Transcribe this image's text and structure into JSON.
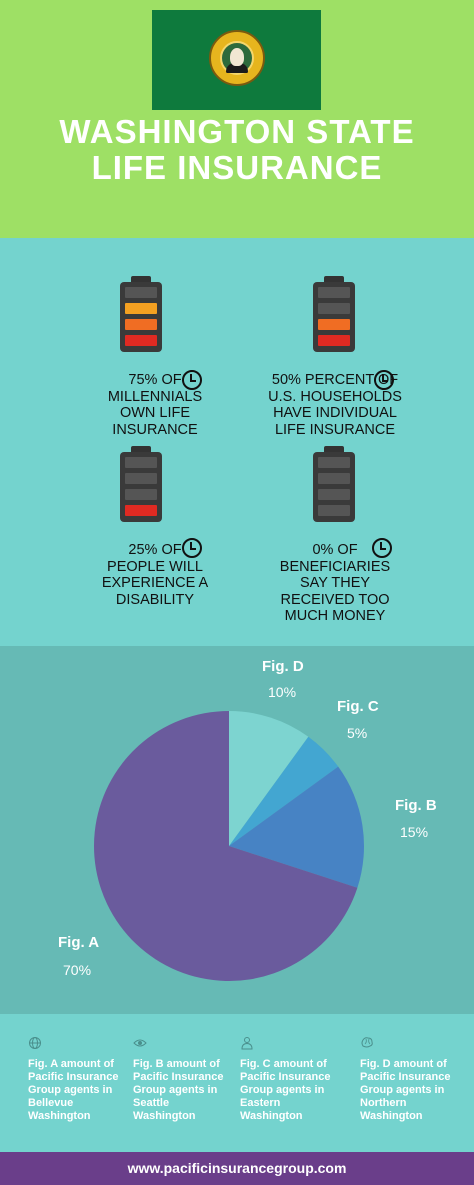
{
  "header": {
    "title_line1": "WASHINGTON STATE",
    "title_line2": "LIFE INSURANCE",
    "flag_color": "#0e7a3d",
    "seal_text": "THE SEAL OF THE STATE OF WASHINGTON 1889"
  },
  "stats": [
    {
      "line1": "75% OF",
      "line2": "MILLENNIALS",
      "line3": "OWN LIFE",
      "line4": "INSURANCE",
      "charge_level": 0.75
    },
    {
      "line1": "50% PERCENT OF",
      "line2": "U.S. HOUSEHOLDS",
      "line3": "HAVE INDIVIDUAL",
      "line4": "LIFE INSURANCE",
      "charge_level": 0.5
    },
    {
      "line1": "25% OF",
      "line2": "PEOPLE WILL",
      "line3": "EXPERIENCE A",
      "line4": "DISABILITY",
      "charge_level": 0.25
    },
    {
      "line1": "0% OF",
      "line2": "BENEFICIARIES",
      "line3": "SAY THEY",
      "line4": "RECEIVED TOO",
      "line5": "MUCH MONEY",
      "charge_level": 0
    }
  ],
  "chart_data": {
    "type": "pie",
    "slices": [
      {
        "label": "Fig. D",
        "pct_label": "10%",
        "value": 10,
        "color": "#7dd4d0"
      },
      {
        "label": "Fig. C",
        "pct_label": "5%",
        "value": 5,
        "color": "#43a6d1"
      },
      {
        "label": "Fig. B",
        "pct_label": "15%",
        "value": 15,
        "color": "#4783c4"
      },
      {
        "label": "Fig. A",
        "pct_label": "70%",
        "value": 70,
        "color": "#6a5b9d"
      }
    ]
  },
  "legend": [
    {
      "icon": "globe-icon",
      "text": "Fig. A amount of Pacific Insurance Group agents in Bellevue Washington"
    },
    {
      "icon": "eye-icon",
      "text": "Fig.  B amount of Pacific Insurance Group agents in Seattle Washington"
    },
    {
      "icon": "person-icon",
      "text": "Fig.  C amount of Pacific Insurance Group agents in Eastern Washington"
    },
    {
      "icon": "brain-icon",
      "text": "Fig.  D amount of Pacific Insurance Group agents in Northern Washington"
    }
  ],
  "footer": {
    "url": "www.pacificinsurancegroup.com"
  },
  "colors": {
    "header_bg": "#9ee065",
    "stats_bg": "#74d3ce",
    "pie_bg": "#66bab5",
    "footer_bg": "#6a3e8a",
    "cell_red": "#e02a22",
    "cell_orange": "#f06d23",
    "cell_amber": "#f4a021"
  }
}
